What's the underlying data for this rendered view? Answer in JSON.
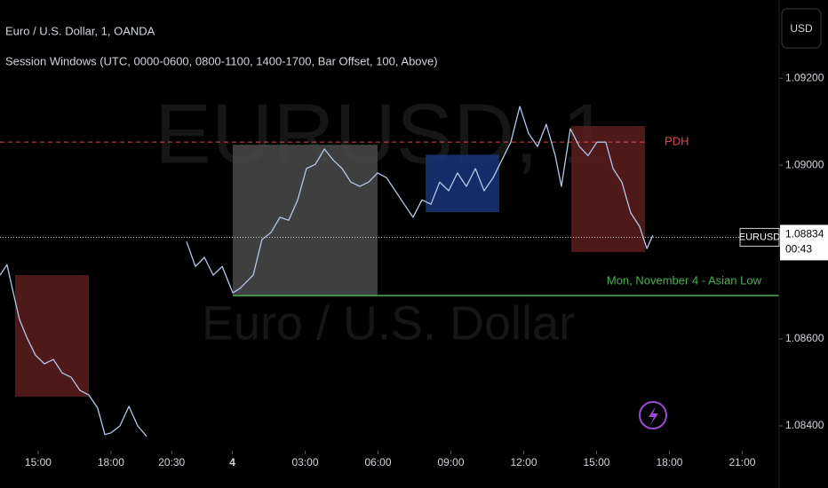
{
  "chart_data": {
    "type": "line",
    "title": "Euro / U.S. Dollar, 1, OANDA",
    "subtitle": "Session Windows (UTC, 0000-0600, 0800-1100, 1400-1700, Bar Offset, 100, Above)",
    "watermark": {
      "symbol": "EURUSD, 1",
      "name": "Euro / U.S. Dollar"
    },
    "currency": "USD",
    "xlim": [
      13.43,
      45.52
    ],
    "ylim": [
      1.08349,
      1.0938
    ],
    "xticks": [
      {
        "value": 15,
        "label": "15:00"
      },
      {
        "value": 18,
        "label": "18:00"
      },
      {
        "value": 20.5,
        "label": "20:30"
      },
      {
        "value": 23,
        "label": "4"
      },
      {
        "value": 26,
        "label": "03:00"
      },
      {
        "value": 29,
        "label": "06:00"
      },
      {
        "value": 32,
        "label": "09:00"
      },
      {
        "value": 35,
        "label": "12:00"
      },
      {
        "value": 38,
        "label": "15:00"
      },
      {
        "value": 41,
        "label": "18:00"
      },
      {
        "value": 44,
        "label": "21:00"
      }
    ],
    "yticks": [
      {
        "value": 1.092,
        "label": "1.09200"
      },
      {
        "value": 1.09,
        "label": "1.09000"
      },
      {
        "value": 1.086,
        "label": "1.08600"
      },
      {
        "value": 1.084,
        "label": "1.08400"
      }
    ],
    "series": [
      {
        "name": "EURUSD",
        "color": "#b4c8e6",
        "x": [
          13.43,
          13.72,
          13.98,
          14.23,
          14.53,
          14.89,
          15.26,
          15.63,
          15.99,
          16.36,
          16.72,
          17.09,
          17.45,
          17.75,
          18.0,
          18.37,
          18.74,
          19.1,
          19.47,
          20.38,
          21.11,
          21.48,
          21.85,
          22.21,
          22.58,
          23.02,
          23.31,
          23.86,
          24.22,
          24.59,
          24.96,
          25.32,
          25.69,
          26.05,
          26.42,
          26.79,
          27.15,
          27.52,
          27.88,
          28.25,
          28.61,
          28.98,
          29.35,
          29.71,
          30.08,
          30.44,
          30.81,
          31.18,
          31.54,
          31.91,
          32.27,
          32.64,
          33.01,
          33.37,
          33.74,
          34.1,
          34.47,
          34.84,
          35.2,
          35.57,
          35.93,
          36.3,
          36.55,
          36.92,
          37.29,
          37.65,
          38.02,
          38.38,
          38.68,
          39.04,
          39.41,
          39.77,
          40.07,
          40.32
        ],
        "values": [
          1.08747,
          1.08771,
          1.08706,
          1.08645,
          1.08604,
          1.08563,
          1.08543,
          1.08553,
          1.08522,
          1.08512,
          1.08482,
          1.08471,
          1.08441,
          1.0838,
          1.08384,
          1.084,
          1.08445,
          1.084,
          1.08376,
          null,
          1.08824,
          1.08767,
          1.08788,
          1.08747,
          1.08767,
          1.08706,
          1.08716,
          1.08747,
          1.08829,
          1.08845,
          1.0888,
          1.08873,
          1.0892,
          1.08992,
          1.09002,
          1.09037,
          1.09012,
          1.08992,
          1.08961,
          1.08951,
          1.08961,
          1.08982,
          1.08971,
          1.08941,
          1.0891,
          1.0888,
          1.0892,
          1.0891,
          1.08961,
          1.08941,
          1.08982,
          1.08951,
          1.08992,
          1.08941,
          1.08971,
          1.09012,
          1.09053,
          1.09135,
          1.09073,
          1.09043,
          1.09094,
          1.09022,
          1.08951,
          1.09084,
          1.09043,
          1.09022,
          1.09053,
          1.09053,
          1.08992,
          1.08961,
          1.0889,
          1.08859,
          1.08808,
          1.08839
        ]
      }
    ],
    "boxes": [
      {
        "x": [
          14.05,
          17.09
        ],
        "y": [
          1.08747,
          1.08467
        ],
        "color": "#5a1d1d"
      },
      {
        "x": [
          23.02,
          28.98
        ],
        "y": [
          1.09047,
          1.087
        ],
        "color": "#4a4a4a"
      },
      {
        "x": [
          30.96,
          33.99
        ],
        "y": [
          1.09024,
          1.08892
        ],
        "color": "#17357a"
      },
      {
        "x": [
          36.96,
          40.0
        ],
        "y": [
          1.0909,
          1.088
        ],
        "color": "#5a1d1d"
      }
    ],
    "levels": [
      {
        "label": "PDH",
        "y": 1.09053,
        "x": [
          13.43,
          40.07
        ],
        "color": "#e0484f",
        "dashed": true
      },
      {
        "label": "Mon,  November 4 - Asian Low",
        "y": 1.087,
        "x": [
          23.02,
          45.52
        ],
        "color": "#4caf50",
        "dashed": false
      }
    ],
    "last": {
      "value": 1.08834,
      "label": "1.08834",
      "countdown": "00:43",
      "symbol": "EURUSD"
    }
  }
}
